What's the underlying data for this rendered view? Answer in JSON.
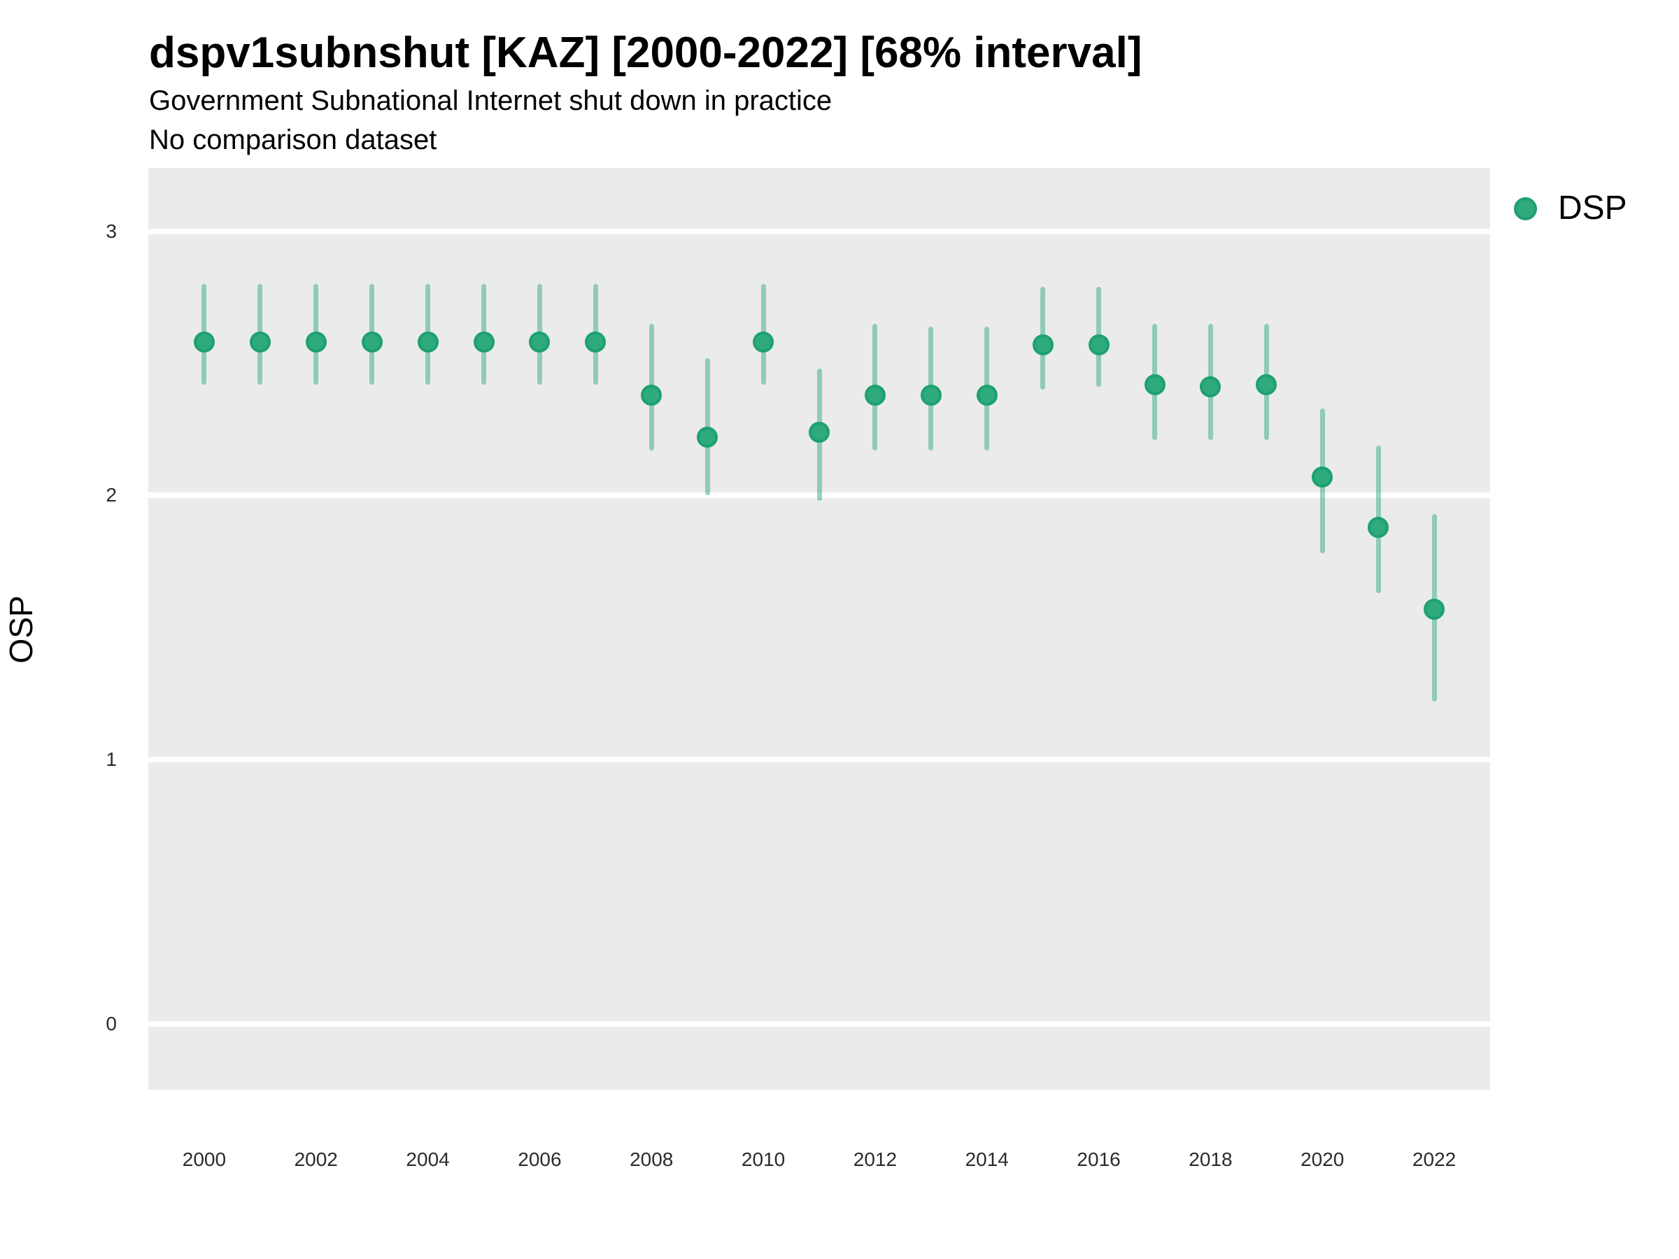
{
  "chart_data": {
    "type": "scatter",
    "variant": "pointrange-68pct-interval",
    "title": "dspv1subnshut [KAZ] [2000-2022] [68% interval]",
    "subtitle": "Government Subnational Internet shut down in practice",
    "note": "No comparison dataset",
    "xlabel": "",
    "ylabel": "OSP",
    "legend": {
      "label": "DSP",
      "position": "right"
    },
    "x": [
      2000,
      2001,
      2002,
      2003,
      2004,
      2005,
      2006,
      2007,
      2008,
      2009,
      2010,
      2011,
      2012,
      2013,
      2014,
      2015,
      2016,
      2017,
      2018,
      2019,
      2020,
      2021,
      2022
    ],
    "series": [
      {
        "name": "DSP",
        "values": [
          2.58,
          2.58,
          2.58,
          2.58,
          2.58,
          2.58,
          2.58,
          2.58,
          2.38,
          2.22,
          2.58,
          2.24,
          2.38,
          2.38,
          2.38,
          2.57,
          2.57,
          2.42,
          2.41,
          2.42,
          2.07,
          1.88,
          1.57
        ],
        "lower": [
          2.42,
          2.42,
          2.42,
          2.42,
          2.42,
          2.42,
          2.42,
          2.42,
          2.17,
          2.0,
          2.42,
          1.98,
          2.17,
          2.17,
          2.17,
          2.4,
          2.41,
          2.21,
          2.21,
          2.21,
          1.78,
          1.63,
          1.22
        ],
        "upper": [
          2.8,
          2.8,
          2.8,
          2.8,
          2.8,
          2.8,
          2.8,
          2.8,
          2.65,
          2.52,
          2.8,
          2.48,
          2.65,
          2.64,
          2.64,
          2.79,
          2.79,
          2.65,
          2.65,
          2.65,
          2.33,
          2.19,
          1.93
        ]
      }
    ],
    "xticks": [
      2000,
      2002,
      2004,
      2006,
      2008,
      2010,
      2012,
      2014,
      2016,
      2018,
      2020,
      2022
    ],
    "yticks": [
      0,
      1,
      2,
      3
    ],
    "xlim": [
      1999,
      2023
    ],
    "ylim": [
      -0.25,
      3.24
    ],
    "grid": "major horizontal white lines on gray panel, no minor gridlines, no tick marks",
    "colors": {
      "point": "#2fa97e",
      "point_border": "#1da16f",
      "range_bar": "rgba(42,168,124,0.48)",
      "panel_bg": "#ebebeb",
      "gridline": "#ffffff",
      "title_text": "#000000",
      "tick_text": "#2b2b2b"
    }
  }
}
